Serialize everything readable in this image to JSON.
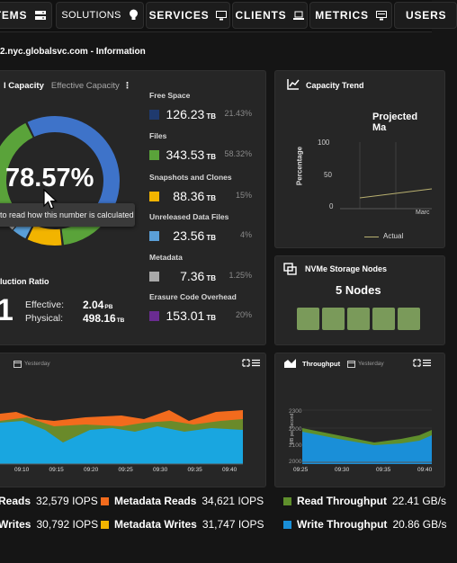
{
  "nav": {
    "systems_label": "TEMS",
    "solutions_label": "SOLUTIONS",
    "services_label": "SERVICES",
    "clients_label": "CLIENTS",
    "metrics_label": "METRICS",
    "users_label": "USERS"
  },
  "breadcrumb": "2.nyc.globalsvc.com - Information",
  "capacity": {
    "tab_active": "l Capacity",
    "tab_inactive": "Effective Capacity",
    "percent": "78.57%",
    "tooltip": "to read how this number is calculated",
    "legend": [
      {
        "label": "Free Space",
        "value": "126.23",
        "unit": "TB",
        "pct": "21.43%",
        "color": "#1f3a6e"
      },
      {
        "label": "Files",
        "value": "343.53",
        "unit": "TB",
        "pct": "58.32%",
        "color": "#5aa33a"
      },
      {
        "label": "Snapshots and Clones",
        "value": "88.36",
        "unit": "TB",
        "pct": "15%",
        "color": "#f2b400"
      },
      {
        "label": "Unreleased Data Files",
        "value": "23.56",
        "unit": "TB",
        "pct": "4%",
        "color": "#5a9fd8"
      },
      {
        "label": "Metadata",
        "value": "7.36",
        "unit": "TB",
        "pct": "1.25%",
        "color": "#a9a9a9"
      },
      {
        "label": "Erasure Code Overhead",
        "value": "153.01",
        "unit": "TB",
        "pct": "20%",
        "color": "#6a2c91"
      }
    ],
    "donut_colors": [
      "#3e73c9",
      "#5aa33a",
      "#f2b400",
      "#5a9fd8",
      "#a9a9a9"
    ]
  },
  "reduction": {
    "title": "luction Ratio",
    "big": "1",
    "effective_label": "Effective:",
    "effective_value": "2.04",
    "effective_unit": "PB",
    "physical_label": "Physical:",
    "physical_value": "498.16",
    "physical_unit": "TB"
  },
  "trend": {
    "title": "Capacity Trend",
    "chart_title": "Projected Ma",
    "ylabel": "Percentage",
    "yticks": [
      "100",
      "50",
      "0"
    ],
    "xtick": "Marc",
    "legend_label": "Actual"
  },
  "nvme": {
    "title": "NVMe Storage Nodes",
    "count_label": "5 Nodes",
    "nodes": 5
  },
  "iops_panel": {
    "period": "Yesterday",
    "xticks": [
      "09:10",
      "09:15",
      "09:20",
      "09:25",
      "09:30",
      "09:35",
      "09:40"
    ]
  },
  "throughput_panel": {
    "title": "Throughput",
    "period": "Yesterday",
    "ylabel": "MB per Second",
    "yticks": [
      "2300",
      "2200",
      "2100",
      "2000"
    ],
    "xticks": [
      "09:25",
      "09:30",
      "09:35",
      "09:40"
    ]
  },
  "stats": {
    "reads_label": "Reads",
    "reads_value": "32,579 IOPS",
    "writes_label": "Writes",
    "writes_value": "30,792 IOPS",
    "meta_reads_label": "Metadata Reads",
    "meta_reads_value": "34,621 IOPS",
    "meta_writes_label": "Metadata Writes",
    "meta_writes_value": "31,747 IOPS",
    "read_tp_label": "Read Throughput",
    "read_tp_value": "22.41 GB/s",
    "write_tp_label": "Write Throughput",
    "write_tp_value": "20.86 GB/s"
  },
  "colors": {
    "iops_blue": "#19a6e0",
    "iops_orange": "#f26b1d",
    "iops_olive": "#6a8a2a",
    "meta_yellow": "#f2b400",
    "tp_green": "#5f8f2c",
    "tp_blue": "#1a8fd8",
    "trend_line": "#b8b070"
  }
}
